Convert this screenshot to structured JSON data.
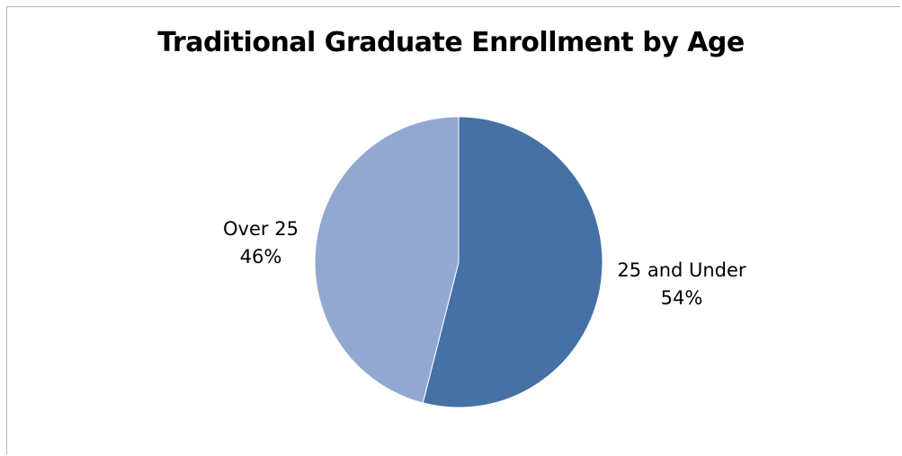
{
  "chart_data": {
    "type": "pie",
    "title": "Traditional Graduate Enrollment by Age",
    "slices": [
      {
        "label": "25 and Under",
        "value": 54,
        "percent_label": "54%",
        "color": "#4571a5"
      },
      {
        "label": "Over 25",
        "value": 46,
        "percent_label": "46%",
        "color": "#93a8d0"
      }
    ],
    "start_angle_deg": 0,
    "direction": "clockwise",
    "legend": "none",
    "data_labels": "outside"
  }
}
